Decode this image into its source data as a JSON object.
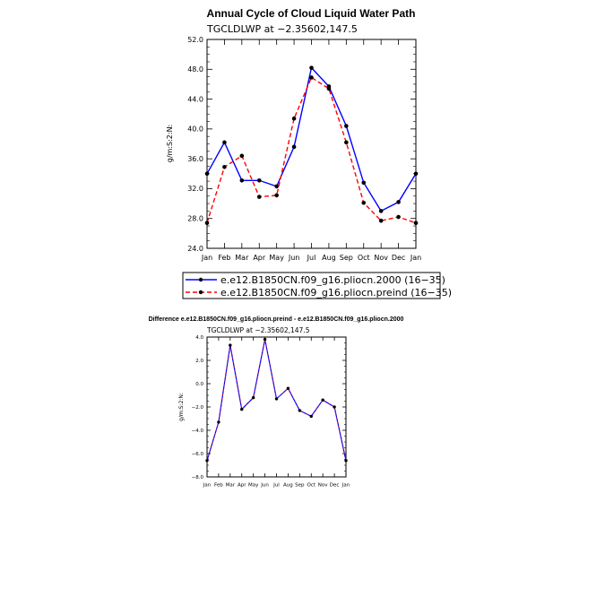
{
  "chart_data": [
    {
      "type": "line",
      "title": "Annual Cycle of Cloud Liquid Water Path",
      "subtitle": "TGCLDLWP at −2.35602,147.5",
      "xlabel": "",
      "ylabel": "g/m:S:2:N:",
      "categories": [
        "Jan",
        "Feb",
        "Mar",
        "Apr",
        "May",
        "Jun",
        "Jul",
        "Aug",
        "Sep",
        "Oct",
        "Nov",
        "Dec",
        "Jan"
      ],
      "ylim": [
        24.0,
        52.0
      ],
      "yticks": [
        "24.0",
        "28.0",
        "32.0",
        "36.0",
        "40.0",
        "44.0",
        "48.0",
        "52.0"
      ],
      "grid": false,
      "legend_position": "bottom",
      "series": [
        {
          "name": "e.e12.B1850CN.f09_g16.pliocn.2000 (16−35)",
          "color": "#0000ff",
          "dash": "solid",
          "values": [
            34.0,
            38.2,
            33.1,
            33.1,
            32.3,
            37.6,
            48.2,
            45.7,
            40.4,
            32.8,
            29.0,
            30.2,
            34.0
          ]
        },
        {
          "name": "e.e12.B1850CN.f09_g16.pliocn.preind (16−35)",
          "color": "#ff0000",
          "dash": "dashed",
          "values": [
            27.4,
            34.9,
            36.4,
            30.9,
            31.1,
            41.4,
            46.9,
            45.4,
            38.2,
            30.1,
            27.7,
            28.2,
            27.4
          ]
        }
      ]
    },
    {
      "type": "line",
      "title": "Difference e.e12.B1850CN.f09_g16.pliocn.preind - e.e12.B1850CN.f09_g16.pliocn.2000",
      "subtitle": "TGCLDLWP at −2.35602,147.5",
      "xlabel": "",
      "ylabel": "g/m:S:2:N:",
      "categories": [
        "Jan",
        "Feb",
        "Mar",
        "Apr",
        "May",
        "Jun",
        "Jul",
        "Aug",
        "Sep",
        "Oct",
        "Nov",
        "Dec",
        "Jan"
      ],
      "ylim": [
        -8.0,
        4.0
      ],
      "yticks": [
        "−8.0",
        "−6.0",
        "−4.0",
        "−2.0",
        "0.0",
        "2.0",
        "4.0"
      ],
      "grid": false,
      "series": [
        {
          "name": "",
          "color": "#0000ff",
          "overlay_color": "#ff0000",
          "values": [
            -6.6,
            -3.3,
            3.3,
            -2.2,
            -1.2,
            3.8,
            -1.3,
            -0.4,
            -2.3,
            -2.8,
            -1.4,
            -2.0,
            -6.6
          ]
        }
      ]
    }
  ]
}
